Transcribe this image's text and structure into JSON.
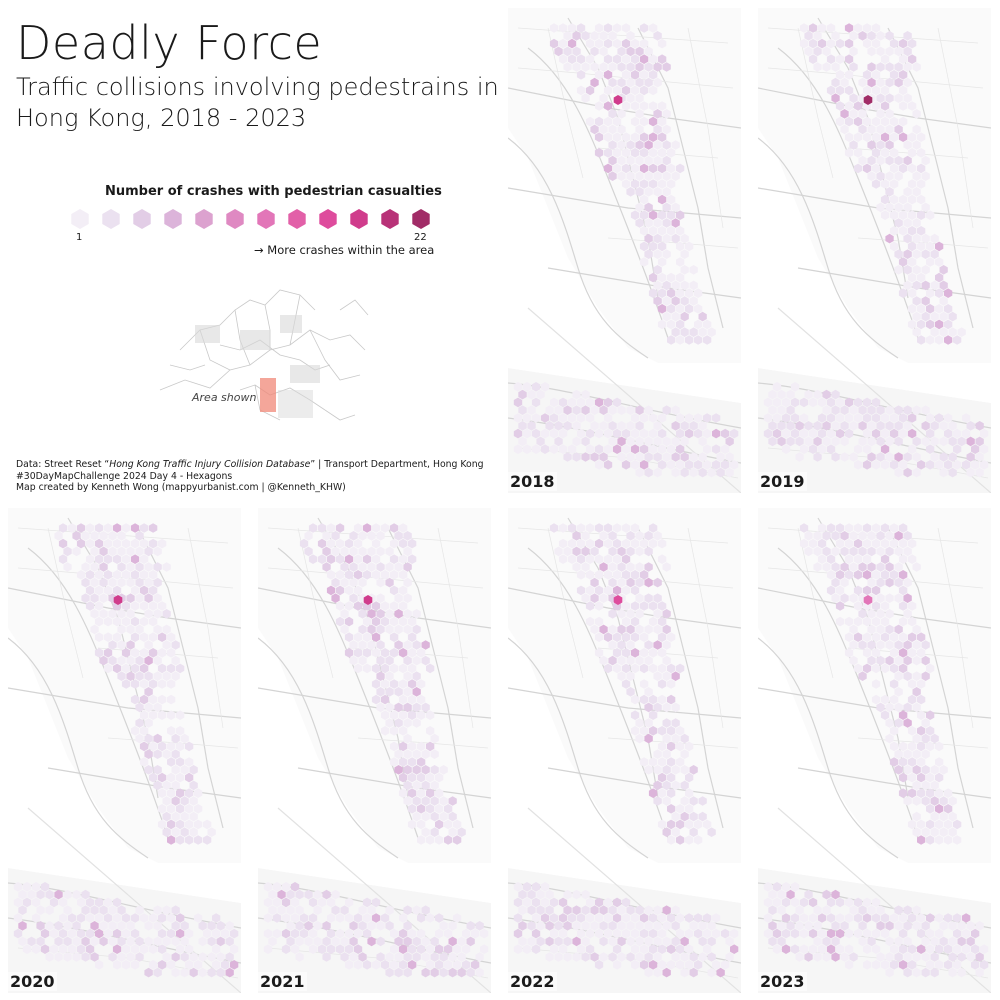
{
  "header": {
    "title": "Deadly Force",
    "subtitle": "Traffic collisions involving pedestrains in Hong Kong, 2018 - 2023"
  },
  "legend": {
    "title": "Number of crashes with pedestrian casualties",
    "min_label": "1",
    "max_label": "22",
    "more_label": "→ More crashes within the area",
    "colors": [
      "#f3eef6",
      "#ebe1f0",
      "#e2cde6",
      "#dcb4da",
      "#dca2cf",
      "#df89c2",
      "#e276b8",
      "#e260a8",
      "#de4c9d",
      "#d03c8c",
      "#b83278",
      "#a12c67"
    ]
  },
  "locator": {
    "label": "Area shown",
    "highlight_color": "#f08878"
  },
  "credits": {
    "line1_pre": "Data: Street Reset “",
    "line1_italic": "Hong Kong Traffic Injury Collision Database",
    "line1_post": "” | Transport Department, Hong Kong",
    "line2": "#30DayMapChallenge 2024 Day 4 - Hexagons",
    "line3": "Map created by Kenneth Wong (mappyurbanist.com | @Kenneth_KHW)"
  },
  "panels": [
    {
      "year": "2018",
      "hotspot_level": 9
    },
    {
      "year": "2019",
      "hotspot_level": 11
    },
    {
      "year": "2020",
      "hotspot_level": 9
    },
    {
      "year": "2021",
      "hotspot_level": 9
    },
    {
      "year": "2022",
      "hotspot_level": 8
    },
    {
      "year": "2023",
      "hotspot_level": 6
    }
  ]
}
